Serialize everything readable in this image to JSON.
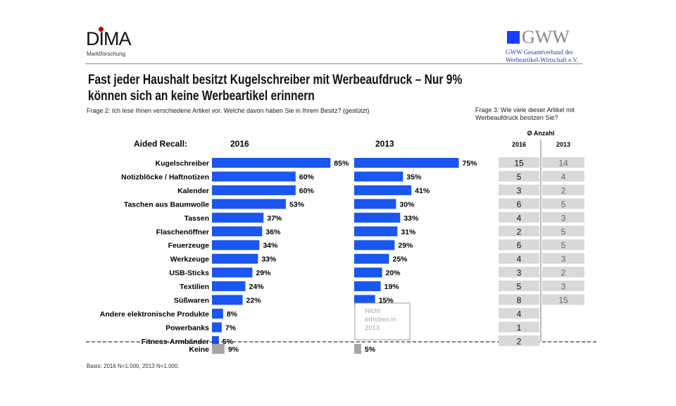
{
  "header": {
    "dima_logo": "DIMA",
    "dima_sub": "Marktforschung",
    "gww_logo": "GWW",
    "gww_sub1": "GWW Gesamtverband der",
    "gww_sub2": "Werbeartikel-Wirtschaft e.V."
  },
  "title_line1": "Fast jeder Haushalt besitzt Kugelschreiber mit Werbeaufdruck – Nur 9%",
  "title_line2": "können sich an keine Werbeartikel erinnern",
  "question2": "Frage 2: Ich lese Ihnen verschiedene Artikel vor. Welche davon haben Sie in Ihrem Besitz? (gestützt)",
  "question3_line1": "Frage 3: Wie viele dieser Artikel mit",
  "question3_line2": "Werbeaufdruck besitzen Sie?",
  "basis": "Basis: 2016 N=1.000, 2013 N=1.000.",
  "colors": {
    "bar": "#1a56f0",
    "keine": "#a6a6a6",
    "cell": "#d9d9d9"
  },
  "chart_data": {
    "type": "bar",
    "orientation": "horizontal",
    "row_header": "Aided Recall:",
    "categories": [
      "Kugelschreiber",
      "Notizblöcke / Haftnotizen",
      "Kalender",
      "Taschen  aus Baumwolle",
      "Tassen",
      "Flaschenöffner",
      "Feuerzeuge",
      "Werkzeuge",
      "USB-Sticks",
      "Textilien",
      "Süßwaren",
      "Andere elektronische Produkte",
      "Powerbanks",
      "Fitness-Armbänder",
      "Keine"
    ],
    "series": [
      {
        "name": "2016",
        "values": [
          85,
          60,
          60,
          53,
          37,
          36,
          34,
          33,
          29,
          24,
          22,
          8,
          7,
          5,
          9
        ]
      },
      {
        "name": "2013",
        "values": [
          75,
          35,
          41,
          30,
          33,
          31,
          29,
          25,
          20,
          19,
          15,
          null,
          null,
          null,
          5
        ]
      }
    ],
    "unit": "%",
    "not_collected_note": [
      "Nicht",
      "erhoben in",
      "2013"
    ],
    "table": {
      "header": "Ø Anzahl",
      "columns": [
        "2016",
        "2013"
      ],
      "values_2016": [
        15,
        5,
        3,
        6,
        4,
        2,
        6,
        4,
        3,
        5,
        8,
        4,
        1,
        2
      ],
      "values_2013": [
        14,
        4,
        2,
        5,
        3,
        5,
        5,
        3,
        2,
        3,
        15,
        null,
        null,
        null
      ]
    }
  }
}
